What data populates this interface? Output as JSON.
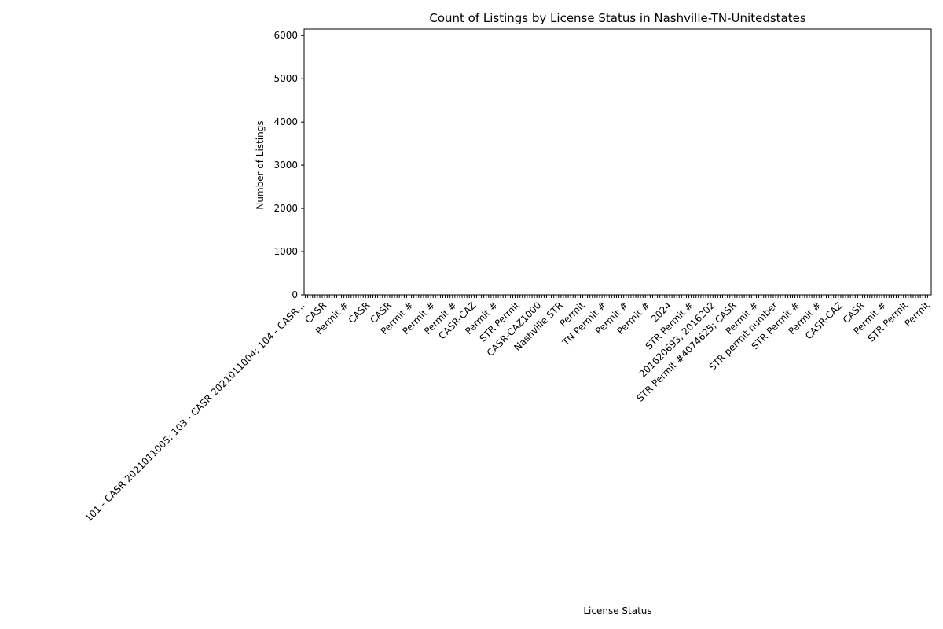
{
  "chart_data": {
    "type": "bar",
    "title": "Count of Listings by License Status in Nashville-TN-Unitedstates",
    "xlabel": "License Status",
    "ylabel": "Number of Listings",
    "ylim": [
      0,
      6150
    ],
    "yticks": [
      0,
      1000,
      2000,
      3000,
      4000,
      5000,
      6000
    ],
    "grid": false,
    "legend": "none",
    "bar_color": "#1f77b4",
    "category_count": 260,
    "categories": [
      "101 - CASR 2021011005; 103 - CASR 2021011004; 104 - CASR...",
      "CASR",
      "Permit #",
      "CASR",
      "CASR",
      "Permit #",
      "Permit #",
      "Permit #",
      "CASR-CAZ",
      "Permit #",
      "STR Permit",
      "CASR-CAZ1000",
      "Nashville STR",
      "Permit",
      "TN Permit #",
      "Permit #",
      "Permit #",
      "2024",
      "STR Permit #",
      "201620693, 2016202",
      "STR Permit #4074625; CASR",
      "Permit #",
      "STR permit number",
      "STR Permit #",
      "Permit #",
      "CASR-CAZ",
      "CASR",
      "Permit #",
      "STR Permit",
      "Permit"
    ],
    "values": [
      0,
      0,
      0,
      0,
      0,
      0,
      0,
      0,
      0,
      0,
      0,
      0,
      0,
      0,
      0,
      0,
      0,
      0,
      0,
      0,
      0,
      0,
      0,
      0,
      0,
      0,
      0,
      0,
      0,
      0
    ]
  }
}
